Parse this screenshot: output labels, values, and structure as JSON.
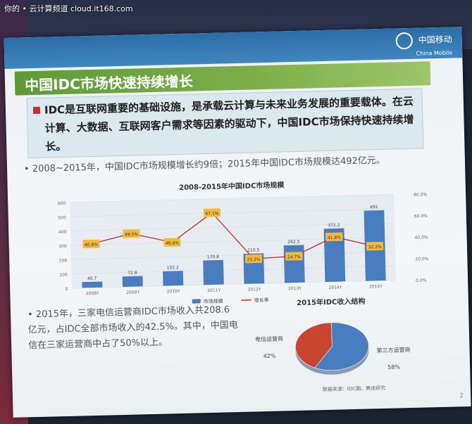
{
  "watermark": "你的 • 云计算频道 cloud.it168.com",
  "logo": {
    "cn": "中国移动",
    "en": "China Mobile"
  },
  "slide_title": "中国IDC市场快速持续增长",
  "intro": "IDC是互联网重要的基础设施，是承载云计算与未来业务发展的重要载体。在云计算、大数据、互联网客户需求等因素的驱动下，中国IDC市场保持快速持续增长。",
  "bullet1": "• 2008~2015年，中国IDC市场规模增长约9倍；2015年中国IDC市场规模达492亿元。",
  "bullet2": "• 2015年，三家电信运营商IDC市场收入共208.6亿元，占IDC全部市场收入的42.5%。其中，中国电信在三家运营商中占了50%以上。",
  "source": "数据来源：IDC圈、赛迪研究",
  "page_number": "2",
  "colors": {
    "bar": "#4a7dc0",
    "line": "#c0392b",
    "label_bg": "#f3b93a",
    "pie_red": "#c8462f",
    "pie_blue": "#4a7dc0"
  },
  "chart_data": [
    {
      "type": "bar+line",
      "title": "2008-2015年中国IDC市场规模",
      "categories": [
        "2008Y",
        "2009Y",
        "2010Y",
        "2011Y",
        "2012Y",
        "2013Y",
        "2014Y",
        "2015Y"
      ],
      "series": [
        {
          "name": "市场规模",
          "type": "bar",
          "axis": "left",
          "values": [
            40.7,
            72.8,
            102.2,
            170.8,
            210.5,
            262.5,
            372.2,
            492
          ]
        },
        {
          "name": "增长率",
          "type": "line",
          "axis": "right",
          "values": [
            0.408,
            0.495,
            0.404,
            0.671,
            0.232,
            0.247,
            0.418,
            0.322
          ],
          "labels": [
            "40.8%",
            "49.5%",
            "40.4%",
            "67.1%",
            "23.2%",
            "24.7%",
            "41.8%",
            "32.2%"
          ]
        }
      ],
      "y_left": {
        "ticks": [
          "0",
          "100",
          "200",
          "300",
          "400",
          "500",
          "600"
        ],
        "lim": [
          0,
          600
        ]
      },
      "y_right": {
        "ticks": [
          "0.0%",
          "20.0%",
          "40.0%",
          "60.0%",
          "80.0%"
        ],
        "lim": [
          0,
          0.8
        ]
      },
      "legend": {
        "position": "bottom",
        "items": [
          "市场规模",
          "增长率"
        ]
      }
    },
    {
      "type": "pie",
      "title": "2015年IDC收入结构",
      "slices": [
        {
          "label": "电信运营商",
          "value": 42,
          "label_text": "42%"
        },
        {
          "label": "第三方运营商",
          "value": 58,
          "label_text": "58%"
        }
      ]
    }
  ]
}
